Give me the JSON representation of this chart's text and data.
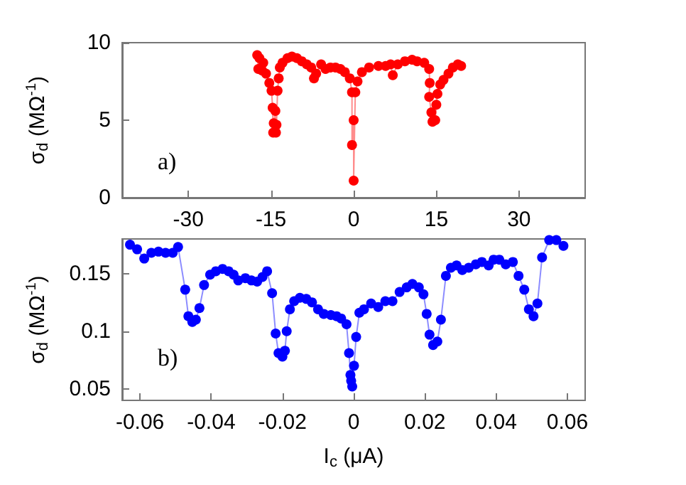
{
  "chart_data": [
    {
      "type": "line",
      "ylabel": "σ$_{d}$ (MΩ$^{-1}$)",
      "annotations": [
        "a)"
      ],
      "marker": "circle",
      "line_style": "solid",
      "grid": false,
      "xlim": [
        -42,
        42
      ],
      "xticks": [
        -30,
        -15,
        0,
        15,
        30
      ],
      "ylim": [
        0,
        10
      ],
      "yticks": [
        0,
        5,
        10
      ],
      "series": [
        {
          "color": "#ff0000",
          "x": [
            -17.5,
            -17.3,
            -17.1,
            -16.6,
            -16.4,
            -15.9,
            -15.3,
            -14.9,
            -14.7,
            -14.6,
            -14.5,
            -14.2,
            -14.1,
            -14.0,
            -13.8,
            -13.6,
            -13.4,
            -12.9,
            -12.0,
            -11.2,
            -10.3,
            -9.4,
            -8.5,
            -7.7,
            -7.2,
            -6.8,
            -5.9,
            -5.1,
            -4.2,
            -3.3,
            -2.4,
            -1.6,
            -0.7,
            -0.3,
            -0.3,
            0,
            0,
            0.3,
            0.7,
            1.5,
            2.8,
            4.5,
            5.8,
            6.7,
            7.1,
            8.0,
            9.3,
            10.6,
            11.5,
            12.8,
            13.7,
            13.8,
            13.7,
            14.1,
            14.3,
            14.8,
            15.0,
            15.2,
            15.7,
            16.3,
            17.2,
            18.0,
            18.9,
            19.5
          ],
          "values": [
            9.2,
            8.3,
            9.0,
            8.2,
            8.7,
            8.0,
            7.4,
            6.9,
            5.8,
            4.2,
            4.8,
            5.6,
            4.2,
            4.7,
            6.9,
            7.7,
            8.4,
            8.7,
            9.0,
            9.1,
            9.0,
            8.8,
            8.6,
            8.4,
            7.7,
            8.0,
            8.6,
            8.3,
            8.4,
            8.4,
            8.3,
            8.1,
            7.7,
            6.8,
            3.4,
            5.0,
            1.1,
            6.8,
            7.5,
            8.1,
            8.4,
            8.5,
            8.5,
            8.6,
            7.9,
            8.6,
            8.8,
            8.9,
            8.8,
            8.7,
            8.3,
            7.4,
            6.5,
            5.5,
            4.9,
            5.0,
            6.0,
            6.7,
            7.3,
            7.6,
            8.0,
            8.4,
            8.6,
            8.5
          ]
        }
      ]
    },
    {
      "type": "line",
      "xlabel": "I$_{c}$ (μA)",
      "ylabel": "σ$_{d}$ (MΩ$^{-1}$)",
      "annotations": [
        "b)"
      ],
      "marker": "circle",
      "line_style": "solid",
      "grid": false,
      "xlim": [
        -0.065,
        0.065
      ],
      "xticks": [
        -0.06,
        -0.04,
        -0.02,
        0,
        0.02,
        0.04,
        0.06
      ],
      "ylim": [
        0.04,
        0.18
      ],
      "yticks": [
        0.05,
        0.1,
        0.15
      ],
      "series": [
        {
          "color": "#0000ff",
          "x": [
            -0.0628,
            -0.0608,
            -0.0588,
            -0.0568,
            -0.0548,
            -0.0528,
            -0.0508,
            -0.0493,
            -0.0473,
            -0.0464,
            -0.0453,
            -0.0443,
            -0.0433,
            -0.042,
            -0.0403,
            -0.0387,
            -0.0368,
            -0.0351,
            -0.0337,
            -0.0324,
            -0.0304,
            -0.0287,
            -0.0271,
            -0.0256,
            -0.0243,
            -0.0229,
            -0.0219,
            -0.0211,
            -0.02,
            -0.0193,
            -0.0188,
            -0.0179,
            -0.0167,
            -0.0151,
            -0.0133,
            -0.0117,
            -0.01,
            -0.0084,
            -0.0064,
            -0.0048,
            -0.0035,
            -0.002,
            -0.0013,
            -0.0009,
            -0.0007,
            -0.0004,
            0.0001,
            0.0007,
            0.0016,
            0.0029,
            0.0049,
            0.0069,
            0.0089,
            0.0109,
            0.0129,
            0.0149,
            0.0165,
            0.0183,
            0.0196,
            0.0205,
            0.0213,
            0.0223,
            0.0235,
            0.0245,
            0.0259,
            0.0273,
            0.0289,
            0.0305,
            0.0323,
            0.0343,
            0.036,
            0.0379,
            0.0393,
            0.0409,
            0.0427,
            0.0447,
            0.0463,
            0.0479,
            0.0492,
            0.0505,
            0.0516,
            0.0529,
            0.0549,
            0.0569,
            0.0589
          ],
          "values": [
            0.175,
            0.171,
            0.163,
            0.168,
            0.169,
            0.168,
            0.168,
            0.173,
            0.136,
            0.113,
            0.108,
            0.11,
            0.12,
            0.14,
            0.149,
            0.152,
            0.154,
            0.152,
            0.149,
            0.144,
            0.146,
            0.144,
            0.143,
            0.147,
            0.152,
            0.133,
            0.098,
            0.081,
            0.078,
            0.083,
            0.1,
            0.119,
            0.126,
            0.129,
            0.128,
            0.125,
            0.119,
            0.115,
            0.114,
            0.113,
            0.111,
            0.106,
            0.081,
            0.062,
            0.057,
            0.052,
            0.07,
            0.095,
            0.116,
            0.119,
            0.124,
            0.121,
            0.126,
            0.126,
            0.134,
            0.138,
            0.141,
            0.138,
            0.132,
            0.115,
            0.097,
            0.088,
            0.091,
            0.11,
            0.148,
            0.155,
            0.157,
            0.153,
            0.155,
            0.158,
            0.16,
            0.157,
            0.162,
            0.162,
            0.158,
            0.16,
            0.148,
            0.136,
            0.119,
            0.113,
            0.124,
            0.164,
            0.179,
            0.179,
            0.174
          ]
        }
      ]
    }
  ]
}
